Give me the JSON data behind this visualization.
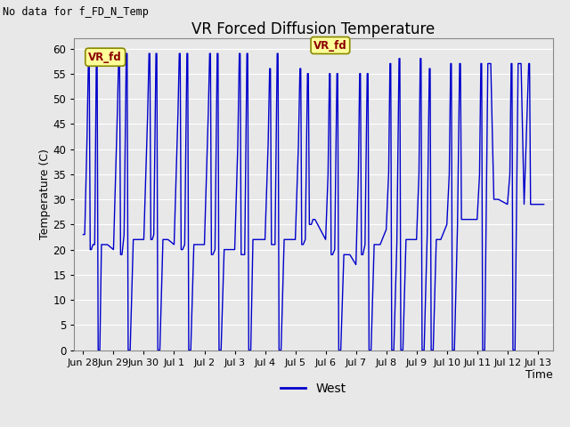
{
  "title": "VR Forced Diffusion Temperature",
  "no_data_label": "No data for f_FD_N_Temp",
  "xlabel": "Time",
  "ylabel": "Temperature (C)",
  "legend_label": "West",
  "line_color": "#0000CC",
  "annotation_text": "VR_fd",
  "bg_color": "#E8E8E8",
  "plot_bg_color": "#E8E8E8",
  "grid_color": "#FFFFFF",
  "ylim": [
    0,
    62
  ],
  "yticks": [
    0,
    5,
    10,
    15,
    20,
    25,
    30,
    35,
    40,
    45,
    50,
    55,
    60
  ],
  "tick_labels": [
    "Jun 28",
    "Jun 29",
    "Jun 30",
    "Jul 1",
    "Jul 2",
    "Jul 3",
    "Jul 4",
    "Jul 5",
    "Jul 6",
    "Jul 7",
    "Jul 8",
    "Jul 9",
    "Jul 10",
    "Jul 11",
    "Jul 12",
    "Jul 13"
  ],
  "tick_positions": [
    0,
    1,
    2,
    3,
    4,
    5,
    6,
    7,
    8,
    9,
    10,
    11,
    12,
    13,
    14,
    15
  ],
  "control_points": [
    [
      0.0,
      23
    ],
    [
      0.05,
      23
    ],
    [
      0.12,
      40
    ],
    [
      0.17,
      58
    ],
    [
      0.2,
      58
    ],
    [
      0.23,
      20
    ],
    [
      0.27,
      20
    ],
    [
      0.32,
      21
    ],
    [
      0.38,
      21
    ],
    [
      0.43,
      58
    ],
    [
      0.46,
      58
    ],
    [
      0.49,
      0
    ],
    [
      0.55,
      0
    ],
    [
      0.6,
      21
    ],
    [
      0.7,
      21
    ],
    [
      0.8,
      21
    ],
    [
      1.0,
      20
    ],
    [
      1.0,
      20
    ],
    [
      1.12,
      45
    ],
    [
      1.17,
      59
    ],
    [
      1.2,
      59
    ],
    [
      1.23,
      19
    ],
    [
      1.28,
      19
    ],
    [
      1.35,
      23
    ],
    [
      1.42,
      59
    ],
    [
      1.45,
      59
    ],
    [
      1.48,
      0
    ],
    [
      1.55,
      0
    ],
    [
      1.65,
      22
    ],
    [
      1.8,
      22
    ],
    [
      2.0,
      22
    ],
    [
      2.0,
      22
    ],
    [
      2.12,
      45
    ],
    [
      2.17,
      59
    ],
    [
      2.2,
      59
    ],
    [
      2.23,
      22
    ],
    [
      2.28,
      22
    ],
    [
      2.33,
      23
    ],
    [
      2.4,
      59
    ],
    [
      2.43,
      59
    ],
    [
      2.46,
      0
    ],
    [
      2.53,
      0
    ],
    [
      2.63,
      22
    ],
    [
      2.8,
      22
    ],
    [
      3.0,
      21
    ],
    [
      3.0,
      21
    ],
    [
      3.12,
      45
    ],
    [
      3.17,
      59
    ],
    [
      3.2,
      59
    ],
    [
      3.23,
      20
    ],
    [
      3.28,
      20
    ],
    [
      3.35,
      21
    ],
    [
      3.42,
      59
    ],
    [
      3.45,
      59
    ],
    [
      3.48,
      0
    ],
    [
      3.55,
      0
    ],
    [
      3.65,
      21
    ],
    [
      3.8,
      21
    ],
    [
      4.0,
      21
    ],
    [
      4.0,
      21
    ],
    [
      4.12,
      45
    ],
    [
      4.17,
      59
    ],
    [
      4.2,
      59
    ],
    [
      4.23,
      19
    ],
    [
      4.28,
      19
    ],
    [
      4.35,
      20
    ],
    [
      4.42,
      59
    ],
    [
      4.45,
      59
    ],
    [
      4.48,
      0
    ],
    [
      4.55,
      0
    ],
    [
      4.65,
      20
    ],
    [
      4.8,
      20
    ],
    [
      5.0,
      20
    ],
    [
      5.0,
      20
    ],
    [
      5.1,
      40
    ],
    [
      5.15,
      59
    ],
    [
      5.18,
      59
    ],
    [
      5.21,
      19
    ],
    [
      5.26,
      19
    ],
    [
      5.33,
      19
    ],
    [
      5.4,
      59
    ],
    [
      5.43,
      59
    ],
    [
      5.46,
      0
    ],
    [
      5.53,
      0
    ],
    [
      5.6,
      22
    ],
    [
      5.8,
      22
    ],
    [
      6.0,
      22
    ],
    [
      6.0,
      22
    ],
    [
      6.1,
      40
    ],
    [
      6.15,
      56
    ],
    [
      6.18,
      56
    ],
    [
      6.21,
      21
    ],
    [
      6.26,
      21
    ],
    [
      6.33,
      21
    ],
    [
      6.4,
      59
    ],
    [
      6.43,
      59
    ],
    [
      6.46,
      0
    ],
    [
      6.53,
      0
    ],
    [
      6.63,
      22
    ],
    [
      6.8,
      22
    ],
    [
      7.0,
      22
    ],
    [
      7.0,
      22
    ],
    [
      7.1,
      40
    ],
    [
      7.15,
      56
    ],
    [
      7.18,
      56
    ],
    [
      7.21,
      21
    ],
    [
      7.26,
      21
    ],
    [
      7.33,
      22
    ],
    [
      7.4,
      55
    ],
    [
      7.43,
      55
    ],
    [
      7.46,
      25
    ],
    [
      7.53,
      25
    ],
    [
      7.58,
      26
    ],
    [
      7.65,
      26
    ],
    [
      8.0,
      22
    ],
    [
      8.0,
      22
    ],
    [
      8.08,
      35
    ],
    [
      8.12,
      55
    ],
    [
      8.15,
      55
    ],
    [
      8.18,
      19
    ],
    [
      8.23,
      19
    ],
    [
      8.3,
      20
    ],
    [
      8.37,
      55
    ],
    [
      8.4,
      55
    ],
    [
      8.43,
      0
    ],
    [
      8.5,
      0
    ],
    [
      8.6,
      19
    ],
    [
      8.8,
      19
    ],
    [
      9.0,
      17
    ],
    [
      9.0,
      17
    ],
    [
      9.08,
      35
    ],
    [
      9.12,
      55
    ],
    [
      9.15,
      55
    ],
    [
      9.18,
      19
    ],
    [
      9.23,
      19
    ],
    [
      9.3,
      21
    ],
    [
      9.37,
      55
    ],
    [
      9.4,
      55
    ],
    [
      9.43,
      0
    ],
    [
      9.5,
      0
    ],
    [
      9.6,
      21
    ],
    [
      9.8,
      21
    ],
    [
      10.0,
      24
    ],
    [
      10.0,
      24
    ],
    [
      10.08,
      35
    ],
    [
      10.12,
      57
    ],
    [
      10.15,
      57
    ],
    [
      10.18,
      0
    ],
    [
      10.25,
      0
    ],
    [
      10.35,
      21
    ],
    [
      10.42,
      58
    ],
    [
      10.45,
      58
    ],
    [
      10.48,
      0
    ],
    [
      10.55,
      0
    ],
    [
      10.65,
      22
    ],
    [
      10.8,
      22
    ],
    [
      11.0,
      22
    ],
    [
      11.0,
      22
    ],
    [
      11.08,
      35
    ],
    [
      11.12,
      58
    ],
    [
      11.15,
      58
    ],
    [
      11.18,
      0
    ],
    [
      11.25,
      0
    ],
    [
      11.35,
      22
    ],
    [
      11.42,
      56
    ],
    [
      11.45,
      56
    ],
    [
      11.48,
      0
    ],
    [
      11.55,
      0
    ],
    [
      11.65,
      22
    ],
    [
      11.8,
      22
    ],
    [
      12.0,
      25
    ],
    [
      12.0,
      25
    ],
    [
      12.08,
      35
    ],
    [
      12.12,
      57
    ],
    [
      12.15,
      57
    ],
    [
      12.18,
      0
    ],
    [
      12.25,
      0
    ],
    [
      12.35,
      24
    ],
    [
      12.42,
      57
    ],
    [
      12.45,
      57
    ],
    [
      12.48,
      26
    ],
    [
      12.6,
      26
    ],
    [
      12.8,
      26
    ],
    [
      13.0,
      26
    ],
    [
      13.0,
      26
    ],
    [
      13.08,
      35
    ],
    [
      13.12,
      57
    ],
    [
      13.15,
      57
    ],
    [
      13.18,
      0
    ],
    [
      13.25,
      0
    ],
    [
      13.35,
      57
    ],
    [
      13.42,
      57
    ],
    [
      13.45,
      57
    ],
    [
      13.55,
      30
    ],
    [
      13.7,
      30
    ],
    [
      14.0,
      29
    ],
    [
      14.0,
      29
    ],
    [
      14.08,
      35
    ],
    [
      14.12,
      57
    ],
    [
      14.15,
      57
    ],
    [
      14.18,
      0
    ],
    [
      14.25,
      0
    ],
    [
      14.35,
      57
    ],
    [
      14.42,
      57
    ],
    [
      14.45,
      57
    ],
    [
      14.55,
      29
    ],
    [
      14.7,
      57
    ],
    [
      14.73,
      57
    ],
    [
      14.76,
      29
    ],
    [
      15.0,
      29
    ],
    [
      15.2,
      29
    ]
  ]
}
